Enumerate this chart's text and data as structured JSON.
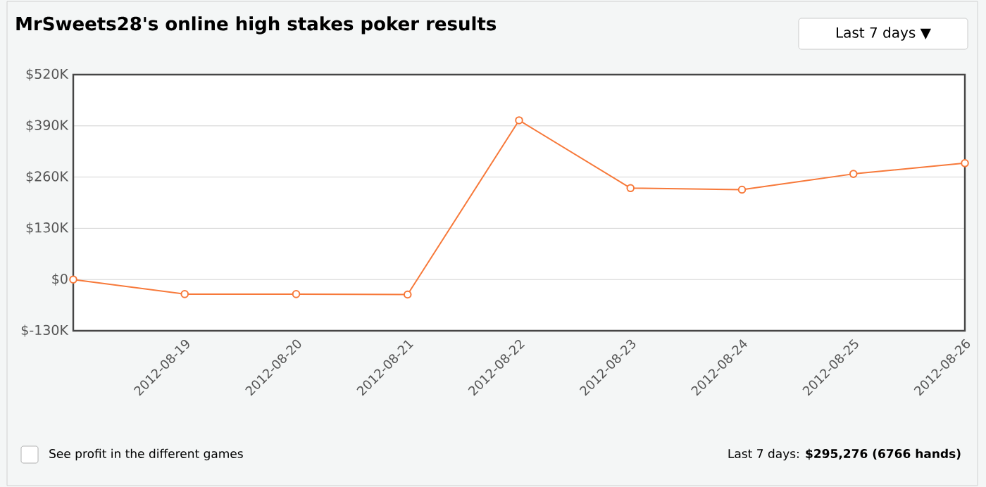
{
  "chart_data": {
    "type": "line",
    "title": "MrSweets28's online high stakes poker results",
    "x": [
      "2012-08-18",
      "2012-08-19",
      "2012-08-20",
      "2012-08-21",
      "2012-08-22",
      "2012-08-23",
      "2012-08-24",
      "2012-08-25",
      "2012-08-26"
    ],
    "series": [
      {
        "color": "#f7793a",
        "values": [
          0,
          -37000,
          -37000,
          -38000,
          404000,
          232000,
          228000,
          268000,
          295276
        ]
      }
    ],
    "xlim": [
      "2012-08-18",
      "2012-08-26"
    ],
    "xticks": [
      "2012-08-19",
      "2012-08-20",
      "2012-08-21",
      "2012-08-22",
      "2012-08-23",
      "2012-08-24",
      "2012-08-25",
      "2012-08-26"
    ],
    "ylim": [
      -130000,
      520000
    ],
    "yticks": [
      {
        "value": -130000,
        "label": "$-130K"
      },
      {
        "value": 0,
        "label": "$0"
      },
      {
        "value": 130000,
        "label": "$130K"
      },
      {
        "value": 260000,
        "label": "$260K"
      },
      {
        "value": 390000,
        "label": "$390K"
      },
      {
        "value": 520000,
        "label": "$520K"
      }
    ],
    "grid": "y",
    "marker": "circle",
    "line_style": "solid",
    "annotations": [
      "Last 7 days ▼",
      "See profit in the different games",
      "Last 7 days: **$295,276 (6766 hands)**"
    ]
  }
}
